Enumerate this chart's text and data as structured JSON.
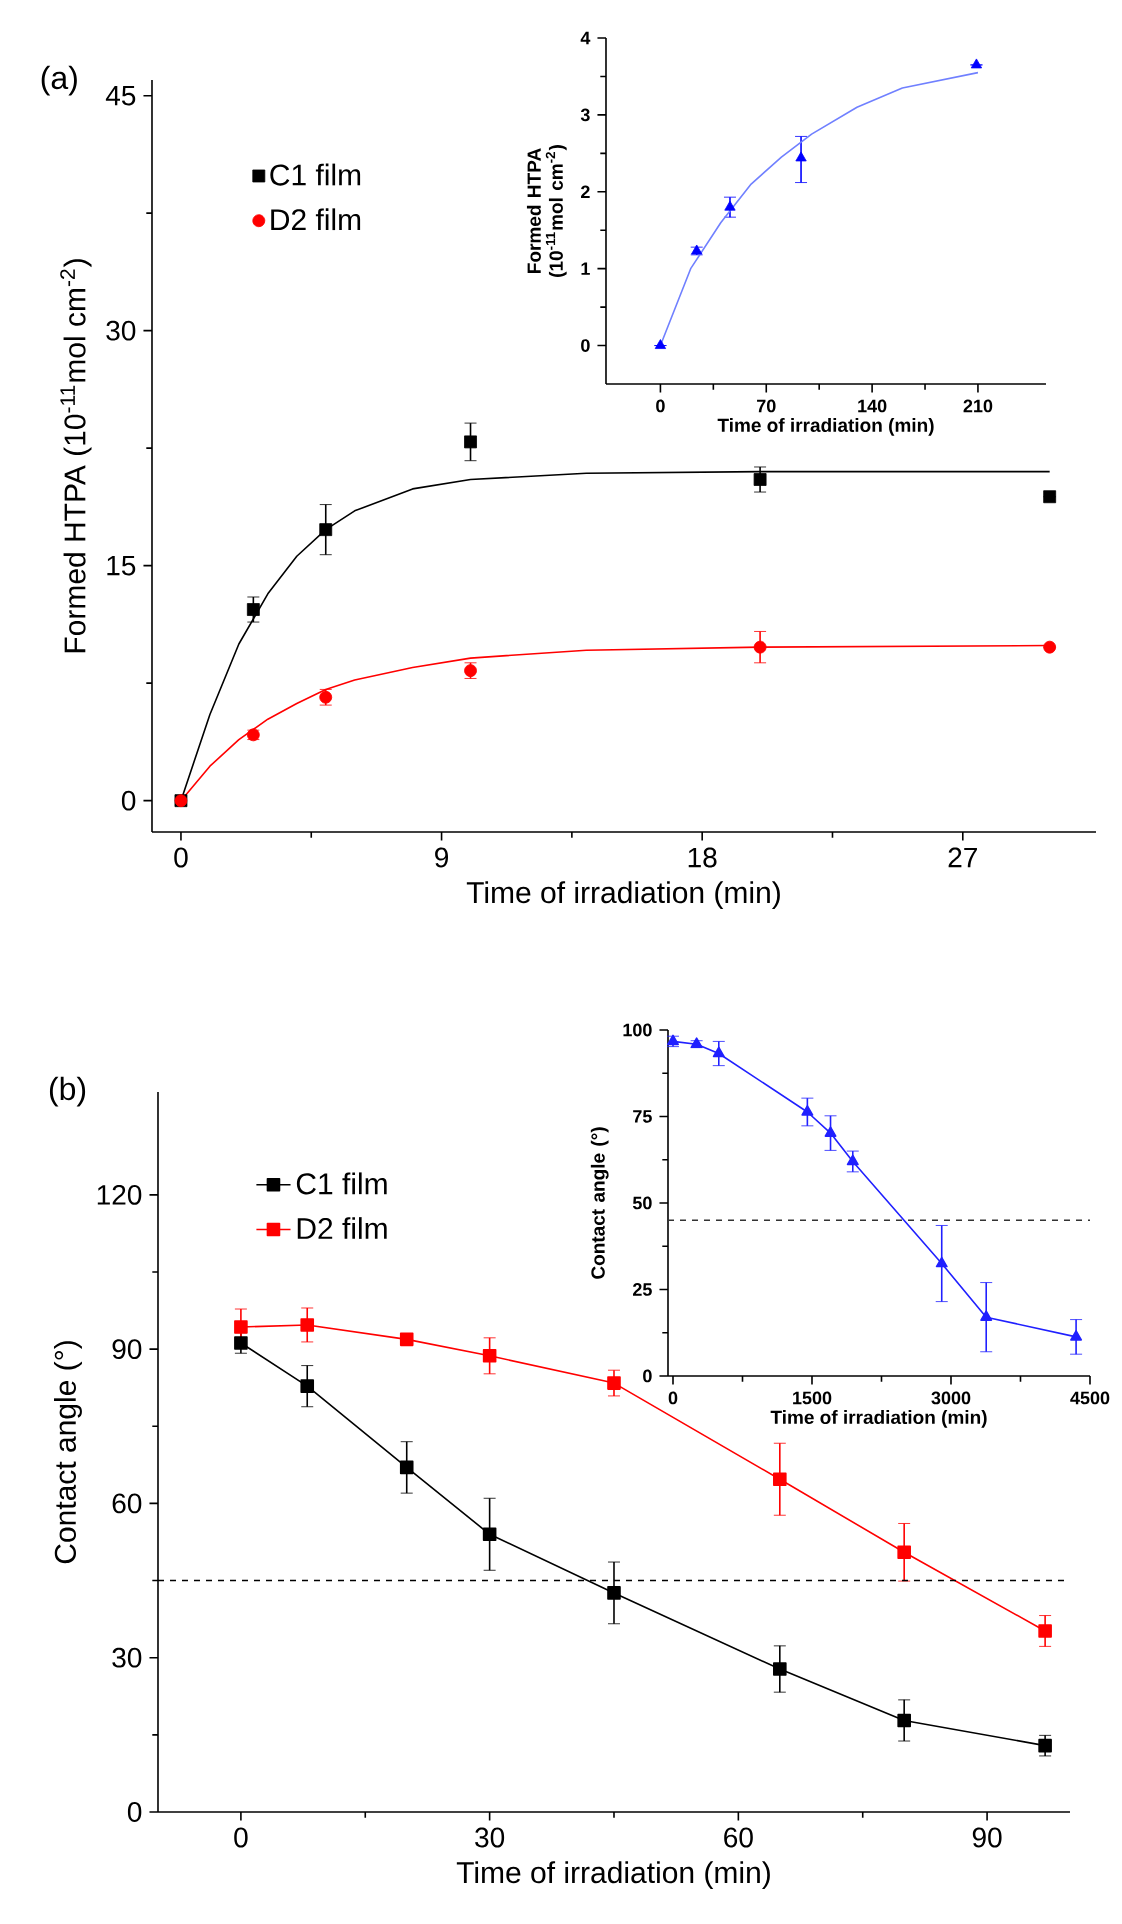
{
  "chart_data": [
    {
      "type": "scatter",
      "xlabel": "Time of irradiation (min)",
      "ylabel": "Formed HTPA (10$^{-11}$mol cm$^{-2}$)",
      "annotations": [
        "(a)"
      ],
      "xlim": [
        -1,
        31.6
      ],
      "ylim": [
        -2,
        46
      ],
      "xticks": [
        0,
        9,
        18,
        27
      ],
      "yticks": [
        0,
        15,
        30,
        45
      ],
      "legend": "top left",
      "series": [
        {
          "name": "C1 film",
          "type": "scatter",
          "marker": "square",
          "color": "#000000",
          "x": [
            0,
            2.5,
            5,
            10,
            20,
            30
          ],
          "values": [
            0,
            12.2,
            17.3,
            22.9,
            20.5,
            19.4
          ],
          "errors": [
            null,
            0.8,
            1.6,
            1.2,
            0.8,
            null
          ]
        },
        {
          "name": "D2 film",
          "type": "scatter",
          "marker": "circle",
          "color": "#ff0000",
          "x": [
            0,
            2.5,
            5,
            10,
            20,
            30
          ],
          "values": [
            0,
            4.2,
            6.6,
            8.3,
            9.8,
            9.8
          ],
          "errors": [
            null,
            0.3,
            0.5,
            0.5,
            1.0,
            null
          ]
        },
        {
          "type": "line",
          "marker": "none",
          "color": "#000000",
          "x": [
            0,
            1,
            2,
            3,
            4,
            5,
            6,
            8,
            10,
            14,
            20,
            30
          ],
          "values": [
            0,
            5.5,
            10.0,
            13.2,
            15.6,
            17.3,
            18.5,
            19.9,
            20.5,
            20.9,
            21.0,
            21.0
          ]
        },
        {
          "type": "line",
          "marker": "none",
          "color": "#ff0000",
          "x": [
            0,
            1,
            2,
            3,
            4,
            5,
            6,
            8,
            10,
            14,
            20,
            30
          ],
          "values": [
            0,
            2.2,
            3.9,
            5.2,
            6.2,
            7.1,
            7.7,
            8.5,
            9.1,
            9.6,
            9.8,
            9.9
          ]
        }
      ]
    },
    {
      "type": "scatter",
      "xlabel": "Time of irradiation (min)",
      "ylabel": "Formed HTPA (10$^{-11}$mol cm$^{-2}$)",
      "xlim": [
        -36,
        255
      ],
      "ylim": [
        -0.5,
        4
      ],
      "xticks": [
        0,
        70,
        140,
        210
      ],
      "yticks": [
        0,
        1,
        2,
        3,
        4
      ],
      "series": [
        {
          "type": "scatter",
          "marker": "triangle",
          "color": "#0000ff",
          "x": [
            0,
            24,
            46,
            93,
            209
          ],
          "values": [
            0,
            1.23,
            1.8,
            2.44,
            3.65
          ],
          "errors": [
            null,
            0.05,
            0.13,
            [
              2.12,
              2.72
            ],
            null
          ]
        },
        {
          "type": "line",
          "marker": "none",
          "color": "#7080ff",
          "x": [
            0,
            20,
            40,
            60,
            80,
            100,
            130,
            160,
            210
          ],
          "values": [
            0,
            1.0,
            1.6,
            2.1,
            2.45,
            2.75,
            3.1,
            3.35,
            3.55
          ]
        }
      ]
    },
    {
      "type": "line",
      "xlabel": "Time of irradiation (min)",
      "ylabel": "Contact angle (°)",
      "annotations": [
        "(b)"
      ],
      "xlim": [
        -10,
        100
      ],
      "ylim": [
        0,
        140
      ],
      "xticks": [
        0,
        30,
        60,
        90
      ],
      "yticks": [
        0,
        30,
        60,
        90,
        120
      ],
      "legend": "top left",
      "marker": "square",
      "ref_lines": [
        {
          "axis": "y",
          "value": 45,
          "line_style": "dashed",
          "color": "#000000"
        }
      ],
      "series": [
        {
          "name": "C1 film",
          "color": "#000000",
          "x": [
            0,
            8,
            20,
            30,
            45,
            65,
            80,
            97
          ],
          "values": [
            91.2,
            82.8,
            67,
            54,
            42.6,
            27.8,
            17.8,
            12.9
          ],
          "errors": [
            2,
            4,
            5,
            7,
            6,
            4.5,
            4,
            2
          ]
        },
        {
          "name": "D2 film",
          "color": "#ff0000",
          "x": [
            0,
            8,
            20,
            30,
            45,
            65,
            80,
            97
          ],
          "values": [
            94.3,
            94.7,
            91.9,
            88.7,
            83.4,
            64.7,
            50.5,
            35.2
          ],
          "errors": [
            3.5,
            3.3,
            1,
            3.5,
            2.5,
            7,
            5.6,
            3
          ]
        }
      ]
    },
    {
      "type": "line",
      "xlabel": "Time of irradiation (min)",
      "ylabel": "Contact angle (°)",
      "xlim": [
        -54,
        4500
      ],
      "ylim": [
        0,
        100
      ],
      "xticks": [
        0,
        1500,
        3000,
        4500
      ],
      "yticks": [
        0,
        25,
        50,
        75,
        100
      ],
      "marker": "triangle",
      "ref_lines": [
        {
          "axis": "y",
          "value": 45,
          "line_style": "dashed",
          "color": "#333333"
        }
      ],
      "series": [
        {
          "color": "#2020ff",
          "x": [
            0,
            255,
            494,
            1450,
            1700,
            1940,
            2900,
            3380,
            4350
          ],
          "values": [
            96.7,
            95.9,
            93.2,
            76.3,
            70.2,
            62,
            32.5,
            17,
            11.3
          ],
          "errors": [
            1.5,
            1,
            3.5,
            4,
            5,
            3,
            11,
            10,
            5
          ]
        }
      ]
    }
  ]
}
